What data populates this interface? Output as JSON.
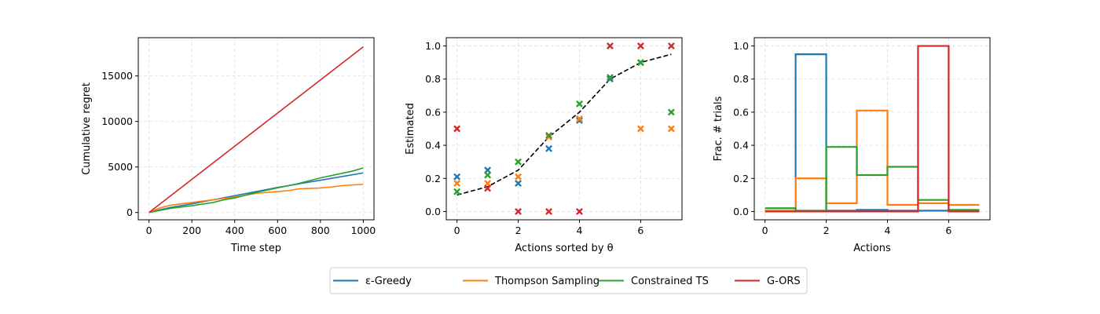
{
  "colors": {
    "blue": "#1f77b4",
    "orange": "#ff7f0e",
    "green": "#2ca02c",
    "red": "#d62728",
    "dashed": "#000000",
    "grid": "#dddddd"
  },
  "legend": {
    "placement": "bottom-center",
    "entries": [
      {
        "label": "ε-Greedy",
        "color": "#1f77b4"
      },
      {
        "label": "Thompson Sampling",
        "color": "#ff7f0e"
      },
      {
        "label": "Constrained TS",
        "color": "#2ca02c"
      },
      {
        "label": "G-ORS",
        "color": "#d62728"
      }
    ]
  },
  "chart_data": [
    {
      "type": "line",
      "xlabel": "Time step",
      "ylabel": "Cumulative regret",
      "xlim": [
        -50,
        1050
      ],
      "ylim": [
        -800,
        19200
      ],
      "xticks": [
        0,
        200,
        400,
        600,
        800,
        1000
      ],
      "yticks": [
        0,
        5000,
        10000,
        15000
      ],
      "grid": true,
      "series": [
        {
          "color": "#1f77b4",
          "x": [
            0,
            50,
            100,
            200,
            300,
            400,
            500,
            600,
            700,
            800,
            900,
            1000
          ],
          "y": [
            0,
            300,
            550,
            950,
            1400,
            1850,
            2300,
            2750,
            3150,
            3550,
            3950,
            4350
          ]
        },
        {
          "color": "#ff7f0e",
          "x": [
            0,
            50,
            100,
            150,
            200,
            300,
            400,
            500,
            600,
            650,
            700,
            800,
            850,
            900,
            1000
          ],
          "y": [
            0,
            500,
            800,
            950,
            1100,
            1400,
            1700,
            2100,
            2300,
            2400,
            2600,
            2700,
            2800,
            2950,
            3100
          ]
        },
        {
          "color": "#2ca02c",
          "x": [
            0,
            100,
            200,
            300,
            350,
            400,
            500,
            600,
            700,
            800,
            900,
            950,
            1000
          ],
          "y": [
            0,
            450,
            750,
            1100,
            1400,
            1600,
            2200,
            2700,
            3200,
            3800,
            4300,
            4550,
            4900
          ]
        },
        {
          "color": "#d62728",
          "x": [
            0,
            1000
          ],
          "y": [
            0,
            18200
          ]
        }
      ]
    },
    {
      "type": "scatter",
      "xlabel": "Actions sorted by θ",
      "ylabel": "Estimated",
      "xlim": [
        -0.35,
        7.35
      ],
      "ylim": [
        -0.05,
        1.05
      ],
      "xticks": [
        0,
        2,
        4,
        6
      ],
      "yticks": [
        0.0,
        0.2,
        0.4,
        0.6,
        0.8,
        1.0
      ],
      "grid": true,
      "reference_line": {
        "style": "dashed",
        "x": [
          0,
          1,
          2,
          3,
          4,
          5,
          6,
          7
        ],
        "y": [
          0.1,
          0.15,
          0.25,
          0.45,
          0.6,
          0.8,
          0.9,
          0.95
        ]
      },
      "series": [
        {
          "color": "#1f77b4",
          "x": [
            0,
            1,
            2,
            3,
            4,
            5,
            6
          ],
          "y": [
            0.21,
            0.25,
            0.17,
            0.38,
            0.55,
            0.8,
            0.9
          ]
        },
        {
          "color": "#ff7f0e",
          "x": [
            0,
            1,
            2,
            3,
            4,
            6,
            7
          ],
          "y": [
            0.17,
            0.17,
            0.21,
            0.45,
            0.56,
            0.5,
            0.5
          ]
        },
        {
          "color": "#2ca02c",
          "x": [
            0,
            1,
            2,
            3,
            4,
            5,
            6,
            7
          ],
          "y": [
            0.12,
            0.22,
            0.3,
            0.46,
            0.65,
            0.81,
            0.9,
            0.6
          ]
        },
        {
          "color": "#d62728",
          "x": [
            0,
            1,
            2,
            3,
            4,
            5,
            6,
            7
          ],
          "y": [
            0.5,
            0.14,
            0.0,
            0.0,
            0.0,
            1.0,
            1.0,
            1.0
          ]
        }
      ]
    },
    {
      "type": "step",
      "xlabel": "Actions",
      "ylabel": "Frac. # trials",
      "xlim": [
        -0.35,
        7.35
      ],
      "ylim": [
        -0.05,
        1.05
      ],
      "xticks": [
        0,
        2,
        4,
        6
      ],
      "yticks": [
        0.0,
        0.2,
        0.4,
        0.6,
        0.8,
        1.0
      ],
      "grid": true,
      "bin_edges": [
        0,
        1,
        2,
        3,
        4,
        5,
        6,
        7
      ],
      "series": [
        {
          "color": "#1f77b4",
          "values": [
            0.0,
            0.95,
            0.005,
            0.01,
            0.005,
            0.005,
            0.005
          ]
        },
        {
          "color": "#ff7f0e",
          "values": [
            0.005,
            0.2,
            0.05,
            0.61,
            0.04,
            0.05,
            0.04
          ]
        },
        {
          "color": "#2ca02c",
          "values": [
            0.02,
            0.005,
            0.39,
            0.22,
            0.27,
            0.07,
            0.01
          ]
        },
        {
          "color": "#d62728",
          "values": [
            0.0,
            0.0,
            0.0,
            0.0,
            0.0,
            1.0,
            0.0
          ]
        }
      ]
    }
  ]
}
